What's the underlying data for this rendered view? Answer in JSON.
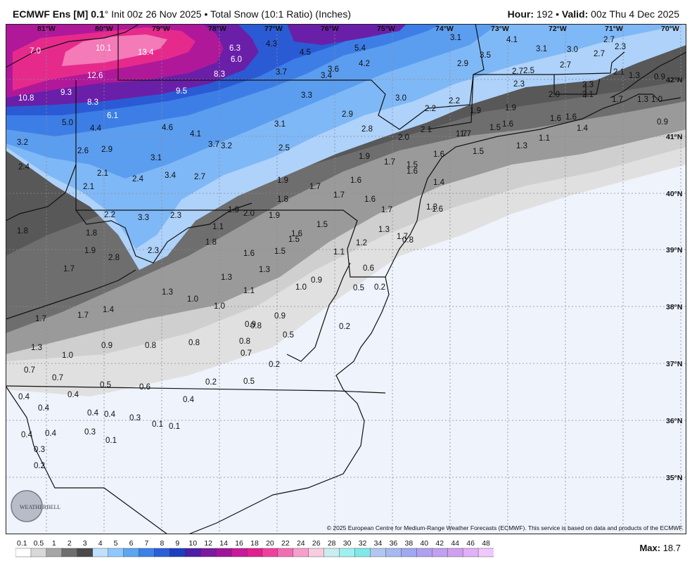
{
  "header": {
    "model": "ECMWF Ens [M] 0.1",
    "degree": "°",
    "init": " Init 00z 26 Nov 2025 • Total Snow (10:1 Ratio) (Inches)",
    "hour_label": "Hour:",
    "hour_value": " 192 • ",
    "valid_label": "Valid:",
    "valid_value": " 00z Thu 4 Dec 2025"
  },
  "copyright": "© 2025 European Centre for Medium-Range Weather Forecasts (ECMWF). This service is based on data and products of the ECMWF.",
  "logo_text": "WEATHERBELL",
  "max_label": "Max:",
  "max_value": " 18.7",
  "longitudes": [
    "81°W",
    "80°W",
    "79°W",
    "78°W",
    "77°W",
    "76°W",
    "75°W",
    "74°W",
    "73°W",
    "72°W",
    "71°W",
    "70°W"
  ],
  "latitudes": [
    "42°N",
    "41°N",
    "40°N",
    "39°N",
    "38°N",
    "37°N",
    "36°N",
    "35°N"
  ],
  "color_scale": {
    "labels": [
      "0.1",
      "0.5",
      "1",
      "2",
      "3",
      "4",
      "5",
      "6",
      "7",
      "8",
      "9",
      "10",
      "12",
      "14",
      "16",
      "18",
      "20",
      "22",
      "24",
      "26",
      "28",
      "30",
      "32",
      "34",
      "36",
      "38",
      "40",
      "42",
      "44",
      "46",
      "48"
    ],
    "colors": [
      "#ffffff",
      "#d9d9d9",
      "#a6a6a6",
      "#6e6e6e",
      "#4a4a4a",
      "#bfe0ff",
      "#8ec8ff",
      "#5aa6f0",
      "#3b82e8",
      "#2a5fd8",
      "#1b3fc0",
      "#4b1fa8",
      "#7a1aa0",
      "#a0169a",
      "#c81a9a",
      "#e0208e",
      "#f0409e",
      "#f26eb4",
      "#f5a0cc",
      "#f8cde0",
      "#c8eef0",
      "#a0f0f0",
      "#80e8e8",
      "#b0c8f0",
      "#a8b8f0",
      "#a0a8f0",
      "#b0a0f0",
      "#c0a0f0",
      "#d0a0f0",
      "#e0b0f8",
      "#f0c8ff"
    ]
  },
  "map_values": [
    {
      "v": "7.0"
    },
    {
      "v": "10.1"
    },
    {
      "v": "13.4"
    },
    {
      "v": "6.3"
    },
    {
      "v": "4.3"
    },
    {
      "v": "4.5"
    },
    {
      "v": "5.4"
    },
    {
      "v": "3.1"
    },
    {
      "v": "4.1"
    },
    {
      "v": "2.7"
    },
    {
      "v": "2.3"
    },
    {
      "v": "6.0"
    },
    {
      "v": "4.2"
    },
    {
      "v": "3.6"
    },
    {
      "v": "3.5"
    },
    {
      "v": "2.9"
    },
    {
      "v": "3.1"
    },
    {
      "v": "3.0"
    },
    {
      "v": "2.7"
    },
    {
      "v": "12.6"
    },
    {
      "v": "8.3"
    },
    {
      "v": "3.7"
    },
    {
      "v": "3.4"
    },
    {
      "v": "2.7"
    },
    {
      "v": "2.5"
    },
    {
      "v": "2.7"
    },
    {
      "v": "2.1"
    },
    {
      "v": "1.3"
    },
    {
      "v": "0.9"
    },
    {
      "v": "2.3"
    },
    {
      "v": "2.3"
    },
    {
      "v": "10.8"
    },
    {
      "v": "9.3"
    },
    {
      "v": "9.5"
    },
    {
      "v": "3.3"
    },
    {
      "v": "3.0"
    },
    {
      "v": "2.2"
    },
    {
      "v": "2.0"
    },
    {
      "v": "2.1"
    },
    {
      "v": "1.7"
    },
    {
      "v": "1.3"
    },
    {
      "v": "1.0"
    },
    {
      "v": "8.3"
    },
    {
      "v": "2.2"
    },
    {
      "v": "1.9"
    },
    {
      "v": "6.1"
    },
    {
      "v": "2.9"
    },
    {
      "v": "1.9"
    },
    {
      "v": "1.6"
    },
    {
      "v": "1.6"
    },
    {
      "v": "5.0"
    },
    {
      "v": "3.1"
    },
    {
      "v": "2.8"
    },
    {
      "v": "1.5"
    },
    {
      "v": "1.7"
    },
    {
      "v": "1.6"
    },
    {
      "v": "1.4"
    },
    {
      "v": "4.4"
    },
    {
      "v": "4.6"
    },
    {
      "v": "2.1"
    },
    {
      "v": "0.9"
    },
    {
      "v": "4.1"
    },
    {
      "v": "2.0"
    },
    {
      "v": "1.7"
    },
    {
      "v": "1.1"
    },
    {
      "v": "3.2"
    },
    {
      "v": "3.7"
    },
    {
      "v": "3.2"
    },
    {
      "v": "2.5"
    },
    {
      "v": "1.3"
    },
    {
      "v": "1.6"
    },
    {
      "v": "1.5"
    },
    {
      "v": "2.6"
    },
    {
      "v": "2.9"
    },
    {
      "v": "3.1"
    },
    {
      "v": "1.9"
    },
    {
      "v": "1.7"
    },
    {
      "v": "2.4"
    },
    {
      "v": "1.5"
    },
    {
      "v": "1.6"
    },
    {
      "v": "2.1"
    },
    {
      "v": "3.4"
    },
    {
      "v": "2.7"
    },
    {
      "v": "2.4"
    },
    {
      "v": "1.6"
    },
    {
      "v": "1.9"
    },
    {
      "v": "1.4"
    },
    {
      "v": "2.1"
    },
    {
      "v": "1.7"
    },
    {
      "v": "1.7"
    },
    {
      "v": "1.8"
    },
    {
      "v": "1.6"
    },
    {
      "v": "1.3"
    },
    {
      "v": "1.6"
    },
    {
      "v": "1.7"
    },
    {
      "v": "2.2"
    },
    {
      "v": "3.3"
    },
    {
      "v": "2.3"
    },
    {
      "v": "1.9"
    },
    {
      "v": "2.0"
    },
    {
      "v": "1.9"
    },
    {
      "v": "1.5"
    },
    {
      "v": "1.1"
    },
    {
      "v": "1.8"
    },
    {
      "v": "1.8"
    },
    {
      "v": "1.3"
    },
    {
      "v": "1.6"
    },
    {
      "v": "1.5"
    },
    {
      "v": "1.2"
    },
    {
      "v": "0.8"
    },
    {
      "v": "1.9"
    },
    {
      "v": "2.8"
    },
    {
      "v": "1.8"
    },
    {
      "v": "2.3"
    },
    {
      "v": "1.6"
    },
    {
      "v": "1.5"
    },
    {
      "v": "1.1"
    },
    {
      "v": "1.7"
    },
    {
      "v": "1.3"
    },
    {
      "v": "1.3"
    },
    {
      "v": "0.6"
    },
    {
      "v": "1.7"
    },
    {
      "v": "1.3"
    },
    {
      "v": "0.9"
    },
    {
      "v": "0.5"
    },
    {
      "v": "0.2"
    },
    {
      "v": "1.0"
    },
    {
      "v": "1.1"
    },
    {
      "v": "1.0"
    },
    {
      "v": "1.4"
    },
    {
      "v": "0.9"
    },
    {
      "v": "1.0"
    },
    {
      "v": "1.7"
    },
    {
      "v": "1.7"
    },
    {
      "v": "0.9"
    },
    {
      "v": "0.2"
    },
    {
      "v": "0.8"
    },
    {
      "v": "0.5"
    },
    {
      "v": "1.3"
    },
    {
      "v": "1.0"
    },
    {
      "v": "0.9"
    },
    {
      "v": "0.8"
    },
    {
      "v": "0.8"
    },
    {
      "v": "0.8"
    },
    {
      "v": "0.7"
    },
    {
      "v": "0.2"
    },
    {
      "v": "0.7"
    },
    {
      "v": "0.7"
    },
    {
      "v": "0.4"
    },
    {
      "v": "0.2"
    },
    {
      "v": "0.5"
    },
    {
      "v": "0.5"
    },
    {
      "v": "0.6"
    },
    {
      "v": "0.4"
    },
    {
      "v": "0.4"
    },
    {
      "v": "0.4"
    },
    {
      "v": "0.4"
    },
    {
      "v": "0.4"
    },
    {
      "v": "0.3"
    },
    {
      "v": "0.1"
    },
    {
      "v": "0.1"
    },
    {
      "v": "0.4"
    },
    {
      "v": "0.4"
    },
    {
      "v": "0.3"
    },
    {
      "v": "0.1"
    },
    {
      "v": "0.3"
    },
    {
      "v": "0.2"
    }
  ]
}
